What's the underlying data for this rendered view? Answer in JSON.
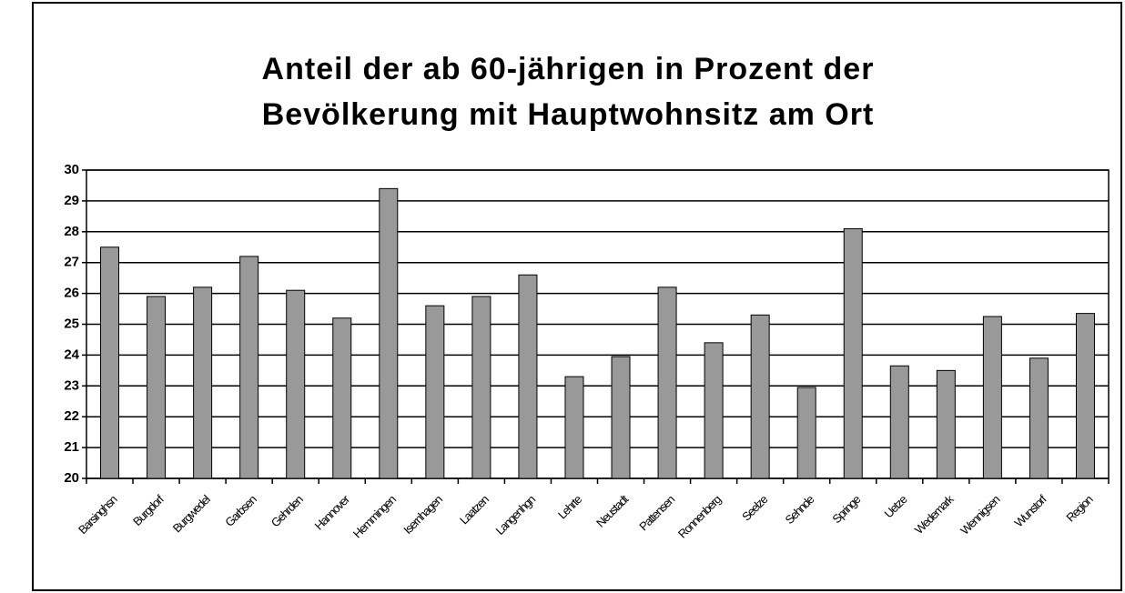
{
  "chart_data": {
    "type": "bar",
    "title": [
      "Anteil der ab 60-jährigen in Prozent der",
      "Bevölkerung mit Hauptwohnsitz am Ort"
    ],
    "categories": [
      "Barsinghsn",
      "Burgdorf",
      "Burgwedel",
      "Garbsen",
      "Gehrden",
      "Hannover",
      "Hemmingen",
      "Isernhagen",
      "Laatzen",
      "Langenhgn",
      "Lehrte",
      "Neustadt",
      "Pattensen",
      "Ronnenberg",
      "Seelze",
      "Sehnde",
      "Springe",
      "Uetze",
      "Wedemark",
      "Wennigsen",
      "Wunstorf",
      "Region"
    ],
    "values": [
      27.5,
      25.9,
      26.2,
      27.2,
      26.1,
      25.2,
      29.4,
      25.6,
      25.9,
      26.6,
      23.3,
      23.95,
      26.2,
      24.4,
      25.3,
      22.95,
      28.1,
      23.65,
      23.5,
      25.25,
      23.9,
      25.35
    ],
    "color": "#999999",
    "ylim": [
      20,
      30
    ],
    "yticks": [
      20,
      21,
      22,
      23,
      24,
      25,
      26,
      27,
      28,
      29,
      30
    ],
    "grid": true
  }
}
